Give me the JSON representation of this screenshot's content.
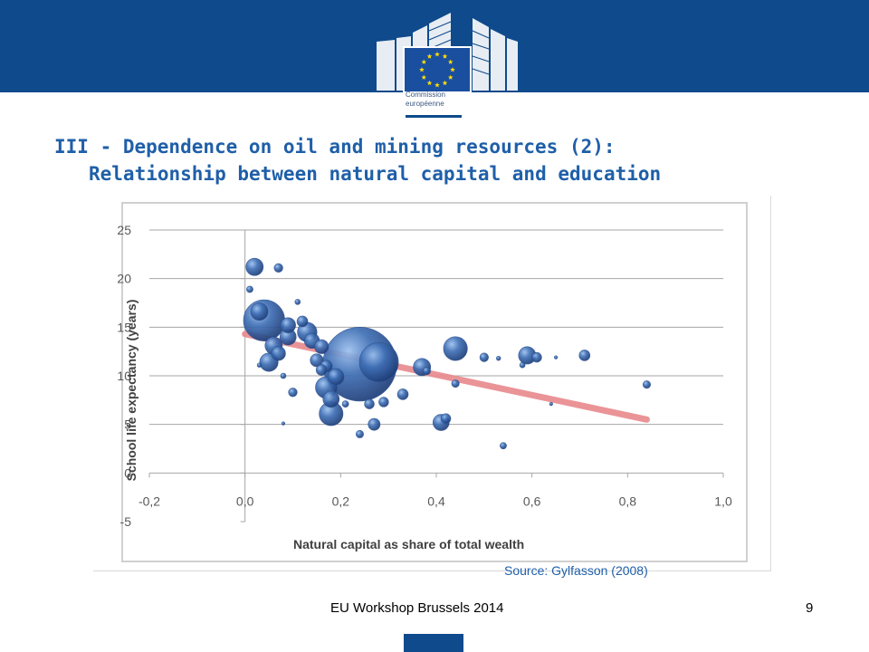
{
  "header": {
    "logo_text_1": "Commission",
    "logo_text_2": "européenne",
    "colors": {
      "band": "#0e4a8c",
      "flag": "#1a4fa0",
      "stars": "#ffdd00"
    },
    "logo_icon": "eu-flag-building-icon"
  },
  "title": {
    "line1": "III - Dependence on oil and mining resources (2):",
    "line2": "Relationship between natural capital and education"
  },
  "chart_data": {
    "type": "scatter",
    "title": "",
    "xlabel": "Natural capital as share of total wealth",
    "ylabel": "School life expectancy (years)",
    "xlim": [
      -0.2,
      1.0
    ],
    "ylim": [
      -5,
      25
    ],
    "x_ticks": [
      "-0,2",
      "0,0",
      "0,2",
      "0,4",
      "0,6",
      "0,8",
      "1,0"
    ],
    "y_ticks": [
      "-5",
      "0",
      "5",
      "10",
      "15",
      "20",
      "25"
    ],
    "grid": "horizontal",
    "trendline": {
      "from": [
        0.0,
        14.3
      ],
      "to": [
        0.84,
        5.5
      ],
      "color": "#e8898c"
    },
    "bubble_color": "#3f6fb5",
    "points": [
      {
        "x": 0.02,
        "y": 21.2,
        "s": 1.6
      },
      {
        "x": 0.07,
        "y": 21.1,
        "s": 0.8
      },
      {
        "x": 0.01,
        "y": 18.9,
        "s": 0.6
      },
      {
        "x": 0.11,
        "y": 17.6,
        "s": 0.5
      },
      {
        "x": 0.03,
        "y": 16.6,
        "s": 1.6
      },
      {
        "x": 0.04,
        "y": 15.7,
        "s": 3.8
      },
      {
        "x": 0.09,
        "y": 15.2,
        "s": 1.4
      },
      {
        "x": 0.12,
        "y": 15.6,
        "s": 1.0
      },
      {
        "x": 0.13,
        "y": 14.5,
        "s": 1.8
      },
      {
        "x": 0.09,
        "y": 14.0,
        "s": 1.5
      },
      {
        "x": 0.06,
        "y": 13.1,
        "s": 1.6
      },
      {
        "x": 0.07,
        "y": 12.3,
        "s": 1.3
      },
      {
        "x": 0.05,
        "y": 11.4,
        "s": 1.7
      },
      {
        "x": 0.14,
        "y": 13.6,
        "s": 1.4
      },
      {
        "x": 0.16,
        "y": 13.0,
        "s": 1.3
      },
      {
        "x": 0.15,
        "y": 11.6,
        "s": 1.2
      },
      {
        "x": 0.17,
        "y": 11.0,
        "s": 1.1
      },
      {
        "x": 0.16,
        "y": 10.6,
        "s": 1.0
      },
      {
        "x": 0.24,
        "y": 11.2,
        "s": 6.8
      },
      {
        "x": 0.28,
        "y": 11.4,
        "s": 3.6
      },
      {
        "x": 0.19,
        "y": 9.9,
        "s": 1.5
      },
      {
        "x": 0.17,
        "y": 8.8,
        "s": 2.0
      },
      {
        "x": 0.18,
        "y": 7.6,
        "s": 1.5
      },
      {
        "x": 0.18,
        "y": 6.1,
        "s": 2.2
      },
      {
        "x": 0.1,
        "y": 8.3,
        "s": 0.8
      },
      {
        "x": 0.21,
        "y": 7.1,
        "s": 0.6
      },
      {
        "x": 0.26,
        "y": 7.1,
        "s": 0.9
      },
      {
        "x": 0.29,
        "y": 7.3,
        "s": 0.9
      },
      {
        "x": 0.33,
        "y": 8.1,
        "s": 1.0
      },
      {
        "x": 0.37,
        "y": 10.9,
        "s": 1.6
      },
      {
        "x": 0.38,
        "y": 10.5,
        "s": 0.7
      },
      {
        "x": 0.44,
        "y": 9.2,
        "s": 0.7
      },
      {
        "x": 0.44,
        "y": 12.8,
        "s": 2.2
      },
      {
        "x": 0.5,
        "y": 11.9,
        "s": 0.8
      },
      {
        "x": 0.53,
        "y": 11.8,
        "s": 0.4
      },
      {
        "x": 0.59,
        "y": 12.1,
        "s": 1.6
      },
      {
        "x": 0.58,
        "y": 11.1,
        "s": 0.5
      },
      {
        "x": 0.61,
        "y": 11.9,
        "s": 0.9
      },
      {
        "x": 0.65,
        "y": 11.9,
        "s": 0.3
      },
      {
        "x": 0.71,
        "y": 12.1,
        "s": 1.0
      },
      {
        "x": 0.84,
        "y": 9.1,
        "s": 0.7
      },
      {
        "x": 0.27,
        "y": 5.0,
        "s": 1.1
      },
      {
        "x": 0.24,
        "y": 4.0,
        "s": 0.7
      },
      {
        "x": 0.41,
        "y": 5.2,
        "s": 1.5
      },
      {
        "x": 0.42,
        "y": 5.6,
        "s": 0.9
      },
      {
        "x": 0.54,
        "y": 2.8,
        "s": 0.6
      },
      {
        "x": 0.64,
        "y": 7.1,
        "s": 0.3
      },
      {
        "x": 0.08,
        "y": 10.0,
        "s": 0.5
      },
      {
        "x": 0.03,
        "y": 11.1,
        "s": 0.4
      },
      {
        "x": 0.08,
        "y": 5.1,
        "s": 0.3
      }
    ]
  },
  "source": "Source: Gylfasson (2008)",
  "footer": {
    "text": "EU Workshop Brussels 2014",
    "page": "9"
  }
}
